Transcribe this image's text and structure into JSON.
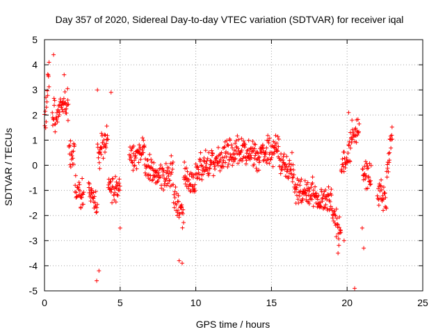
{
  "chart_data": {
    "type": "scatter",
    "title": "Day 357 of 2020, Sidereal Day-to-day VTEC variation (SDTVAR) for receiver iqal",
    "xlabel": "GPS time / hours",
    "ylabel": "SDTVAR / TECUs",
    "xlim": [
      0,
      25
    ],
    "ylim": [
      -5,
      5
    ],
    "xticks": [
      "0",
      "5",
      "10",
      "15",
      "20",
      "25"
    ],
    "yticks": [
      "-5",
      "-4",
      "-3",
      "-2",
      "-1",
      "0",
      "1",
      "2",
      "3",
      "4",
      "5"
    ],
    "grid": true,
    "marker": "+",
    "point_color": "#ff0000",
    "series": [
      {
        "name": "SDTVAR",
        "segments": [
          {
            "x": [
              0.0,
              0.3
            ],
            "y": [
              1.5,
              3.5
            ]
          },
          {
            "x": [
              0.5,
              1.0
            ],
            "y": [
              2.0,
              2.0
            ]
          },
          {
            "x": [
              1.0,
              1.6
            ],
            "y": [
              2.3,
              2.3
            ]
          },
          {
            "x": [
              1.6,
              2.0
            ],
            "y": [
              0.6,
              0.2
            ]
          },
          {
            "x": [
              2.0,
              2.6
            ],
            "y": [
              -1.0,
              -1.1
            ]
          },
          {
            "x": [
              2.9,
              3.5
            ],
            "y": [
              -1.0,
              -1.6
            ]
          },
          {
            "x": [
              3.5,
              4.2
            ],
            "y": [
              0.3,
              1.2
            ]
          },
          {
            "x": [
              4.2,
              5.0
            ],
            "y": [
              -0.8,
              -1.0
            ]
          },
          {
            "x": [
              5.6,
              6.6
            ],
            "y": [
              0.4,
              0.5
            ]
          },
          {
            "x": [
              6.6,
              7.5
            ],
            "y": [
              0.2,
              -0.5
            ]
          },
          {
            "x": [
              7.5,
              8.5
            ],
            "y": [
              -0.5,
              -0.2
            ]
          },
          {
            "x": [
              8.5,
              9.2
            ],
            "y": [
              -1.0,
              -2.3
            ]
          },
          {
            "x": [
              9.2,
              10.0
            ],
            "y": [
              -0.5,
              -0.6
            ]
          },
          {
            "x": [
              10.0,
              11.0
            ],
            "y": [
              -0.3,
              0.1
            ]
          },
          {
            "x": [
              11.0,
              12.5
            ],
            "y": [
              0.1,
              0.6
            ]
          },
          {
            "x": [
              12.5,
              14.0
            ],
            "y": [
              0.6,
              0.4
            ]
          },
          {
            "x": [
              14.0,
              15.5
            ],
            "y": [
              0.3,
              0.7
            ]
          },
          {
            "x": [
              15.5,
              16.5
            ],
            "y": [
              0.1,
              -0.2
            ]
          },
          {
            "x": [
              16.5,
              18.0
            ],
            "y": [
              -1.0,
              -1.2
            ]
          },
          {
            "x": [
              18.0,
              19.0
            ],
            "y": [
              -1.4,
              -1.3
            ]
          },
          {
            "x": [
              19.0,
              19.6
            ],
            "y": [
              -1.8,
              -2.8
            ]
          },
          {
            "x": [
              19.6,
              20.2
            ],
            "y": [
              0.0,
              0.4
            ]
          },
          {
            "x": [
              20.2,
              20.8
            ],
            "y": [
              1.0,
              1.6
            ]
          },
          {
            "x": [
              21.0,
              21.6
            ],
            "y": [
              -0.3,
              -0.3
            ]
          },
          {
            "x": [
              22.0,
              22.6
            ],
            "y": [
              -1.0,
              -1.5
            ]
          },
          {
            "x": [
              22.6,
              23.0
            ],
            "y": [
              -0.5,
              1.5
            ]
          }
        ],
        "extra_points": {
          "x": [
            0.6,
            0.3,
            3.5,
            3.45,
            3.6,
            4.4,
            5.0,
            20.5,
            20.1,
            21.1,
            21.0,
            19.8,
            19.4,
            8.9,
            9.1,
            2.4,
            1.3
          ],
          "y": [
            4.4,
            4.1,
            3.0,
            -4.6,
            -4.2,
            2.9,
            -2.5,
            -4.9,
            2.1,
            -3.3,
            -2.5,
            -3.0,
            -3.5,
            -3.8,
            -3.9,
            -1.7,
            3.6
          ]
        }
      }
    ]
  }
}
